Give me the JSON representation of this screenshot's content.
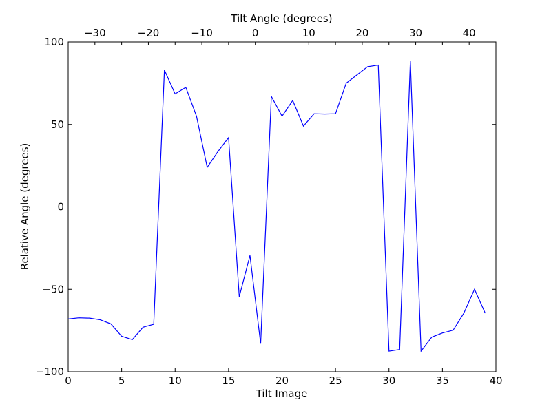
{
  "chart_data": {
    "type": "line",
    "title": "",
    "xlabel": "Tilt Image",
    "ylabel": "Relative Angle (degrees)",
    "top_xlabel": "Tilt Angle (degrees)",
    "xlim": [
      0,
      40
    ],
    "ylim": [
      -100,
      100
    ],
    "top_xlim": [
      -35,
      45
    ],
    "x_ticks": [
      0,
      5,
      10,
      15,
      20,
      25,
      30,
      35,
      40
    ],
    "x_tick_labels": [
      "0",
      "5",
      "10",
      "15",
      "20",
      "25",
      "30",
      "35",
      "40"
    ],
    "y_ticks": [
      -100,
      -50,
      0,
      50,
      100
    ],
    "y_tick_labels": [
      "−100",
      "−50",
      "0",
      "50",
      "100"
    ],
    "top_x_ticks": [
      -30,
      -20,
      -10,
      0,
      10,
      20,
      30,
      40
    ],
    "top_x_tick_labels": [
      "−30",
      "−20",
      "−10",
      "0",
      "10",
      "20",
      "30",
      "40"
    ],
    "grid": false,
    "legend": "none",
    "series": [
      {
        "color": "#0000ff",
        "x": [
          0,
          1,
          2,
          3,
          4,
          5,
          6,
          7,
          8,
          9,
          10,
          11,
          12,
          13,
          14,
          15,
          16,
          17,
          18,
          19,
          20,
          21,
          22,
          23,
          24,
          25,
          26,
          27,
          28,
          29,
          30,
          31,
          32,
          33,
          34,
          35,
          36,
          37,
          38,
          39
        ],
        "values": [
          -68,
          -67.3,
          -67.5,
          -68.5,
          -71,
          -78.5,
          -80.5,
          -73,
          -71.2,
          83,
          68.5,
          72.5,
          55,
          24,
          33.5,
          42,
          -54.5,
          -29.5,
          -83,
          67,
          55,
          64.5,
          49,
          56.5,
          56.3,
          56.5,
          75,
          80,
          85,
          86,
          -87.5,
          -86.5,
          88.5,
          -87.5,
          -79,
          -76.5,
          -74.8,
          -64.5,
          -50,
          -64.5
        ]
      }
    ]
  }
}
